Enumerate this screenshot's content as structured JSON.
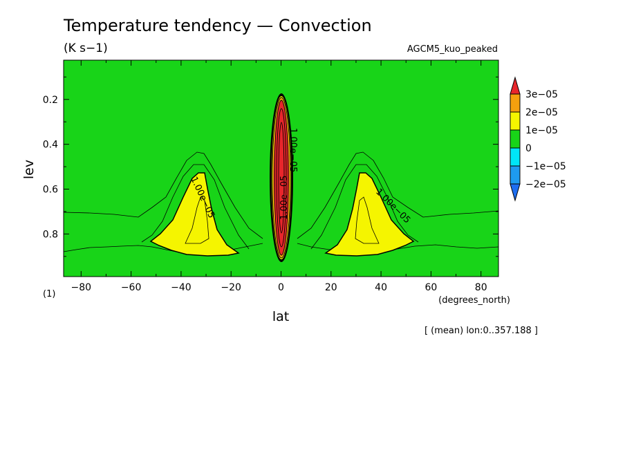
{
  "chart_data": {
    "type": "heatmap",
    "title": "Temperature tendency — Convection",
    "units_label": "(K s−1)",
    "model_label": "AGCM5_kuo_peaked",
    "xlabel": "lat",
    "ylabel": "lev",
    "x_units": "(degrees_north)",
    "y_units": "(1)",
    "footnote": "[ (mean) lon:0..357.188 ]",
    "xlim": [
      -87,
      87
    ],
    "ylim": [
      0.025,
      0.99
    ],
    "y_inverted": true,
    "x_ticks": [
      -80,
      -60,
      -40,
      -20,
      0,
      20,
      40,
      60,
      80
    ],
    "x_tick_labels": [
      "−80",
      "−60",
      "−40",
      "−20",
      "0",
      "20",
      "40",
      "60",
      "80"
    ],
    "y_ticks": [
      0.2,
      0.4,
      0.6,
      0.8
    ],
    "y_tick_labels": [
      "0.2",
      "0.4",
      "0.6",
      "0.8"
    ],
    "background_value_band": "0 to 1e-05",
    "colorbar": {
      "levels": [
        "3e−05",
        "2e−05",
        "1e−05",
        "0",
        "−1e−05",
        "−2e−05"
      ],
      "colors": [
        "#e8262b",
        "#f5a00e",
        "#f5f500",
        "#18d418",
        "#00e6f7",
        "#1e9bf0",
        "#1e6ef0"
      ]
    },
    "contour_labels": [
      "1.00e−05",
      "1.00e−05",
      "1.00e−05",
      "1.00e−05"
    ],
    "regions": [
      {
        "band": "≥1e−05",
        "lat_center": -35,
        "lev_top": 0.53,
        "lev_bottom": 0.91,
        "lat_min": -52,
        "lat_max": -28
      },
      {
        "band": "≥1e−05",
        "lat_center": 35,
        "lev_top": 0.53,
        "lev_bottom": 0.91,
        "lat_min": 28,
        "lat_max": 52
      },
      {
        "band": "≥3e−05",
        "lat_center": 0,
        "lev_top": 0.21,
        "lev_bottom": 0.89,
        "lat_min": -3,
        "lat_max": 3
      }
    ]
  },
  "colors": {
    "green": "#18d418",
    "yellow": "#f5f500",
    "orange": "#f5a00e",
    "red": "#e8262b"
  }
}
